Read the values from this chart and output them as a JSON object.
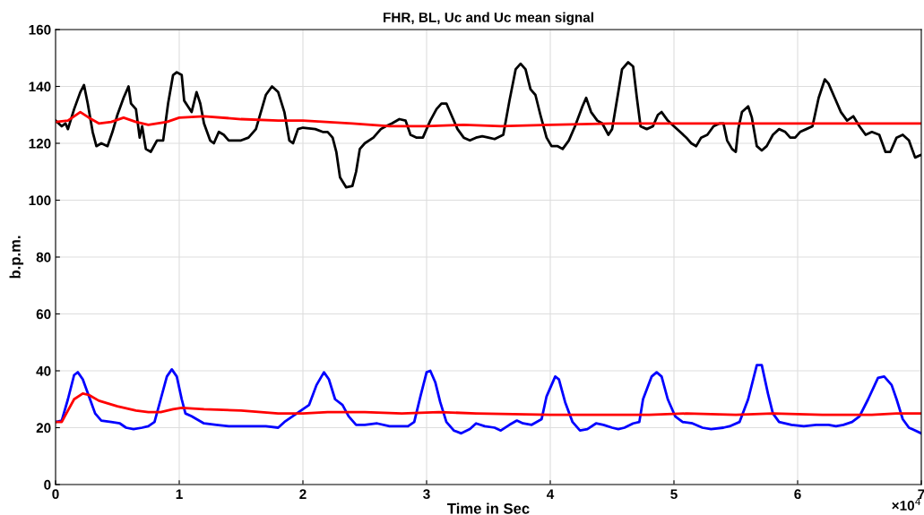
{
  "chart_data": {
    "type": "line",
    "title": "FHR, BL, Uc and Uc mean signal",
    "xlabel": "Time in Sec",
    "ylabel": "b.p.m.",
    "annotations": [
      "×10$^{4}$"
    ],
    "xlim": [
      0,
      7
    ],
    "ylim": [
      0,
      160
    ],
    "xticks": [
      0,
      1,
      2,
      3,
      4,
      5,
      6,
      7
    ],
    "yticks": [
      0,
      20,
      40,
      60,
      80,
      100,
      120,
      140,
      160
    ],
    "grid": true,
    "marker": "none",
    "line_style": "solid",
    "series": [
      {
        "color": "#000000",
        "x": [
          0,
          0.05,
          0.08,
          0.1,
          0.15,
          0.2,
          0.23,
          0.26,
          0.3,
          0.33,
          0.37,
          0.42,
          0.46,
          0.5,
          0.55,
          0.59,
          0.61,
          0.65,
          0.68,
          0.7,
          0.73,
          0.77,
          0.82,
          0.87,
          0.91,
          0.95,
          0.98,
          1.02,
          1.04,
          1.07,
          1.1,
          1.14,
          1.17,
          1.2,
          1.25,
          1.28,
          1.32,
          1.36,
          1.4,
          1.44,
          1.5,
          1.56,
          1.62,
          1.7,
          1.75,
          1.8,
          1.85,
          1.89,
          1.92,
          1.96,
          2.0,
          2.1,
          2.16,
          2.2,
          2.24,
          2.27,
          2.3,
          2.35,
          2.4,
          2.43,
          2.46,
          2.5,
          2.57,
          2.63,
          2.67,
          2.72,
          2.78,
          2.83,
          2.87,
          2.92,
          2.97,
          3.03,
          3.08,
          3.12,
          3.16,
          3.2,
          3.25,
          3.3,
          3.35,
          3.4,
          3.45,
          3.5,
          3.55,
          3.62,
          3.67,
          3.72,
          3.76,
          3.8,
          3.84,
          3.88,
          3.92,
          3.97,
          4.01,
          4.06,
          4.1,
          4.15,
          4.2,
          4.26,
          4.29,
          4.33,
          4.38,
          4.42,
          4.47,
          4.5,
          4.55,
          4.58,
          4.63,
          4.67,
          4.7,
          4.73,
          4.78,
          4.83,
          4.87,
          4.9,
          4.95,
          5.0,
          5.05,
          5.1,
          5.14,
          5.18,
          5.22,
          5.27,
          5.32,
          5.37,
          5.4,
          5.43,
          5.47,
          5.5,
          5.52,
          5.55,
          5.6,
          5.63,
          5.67,
          5.71,
          5.75,
          5.8,
          5.85,
          5.9,
          5.94,
          5.98,
          6.02,
          6.07,
          6.12,
          6.17,
          6.22,
          6.25,
          6.3,
          6.35,
          6.4,
          6.45,
          6.5,
          6.55,
          6.6,
          6.66,
          6.71,
          6.75,
          6.8,
          6.85,
          6.9,
          6.95,
          7.0
        ],
        "values": [
          128,
          126,
          127,
          125,
          132,
          138,
          140.5,
          134,
          124,
          119,
          120,
          119,
          124,
          130,
          136,
          140,
          134,
          132,
          122,
          126,
          118,
          117,
          121,
          121,
          134,
          144,
          145,
          144,
          135,
          133,
          131,
          138,
          134,
          127,
          121,
          120,
          124,
          123,
          121,
          121,
          121,
          122,
          125,
          137,
          140,
          138,
          131,
          121,
          120,
          125,
          125.5,
          125,
          124,
          124,
          122,
          117,
          108,
          104.5,
          105,
          110,
          118,
          120,
          122,
          125,
          126,
          127,
          128.5,
          128,
          123,
          122,
          122,
          128,
          132,
          134,
          134,
          130,
          125,
          122,
          121,
          122,
          122.5,
          122,
          121.5,
          123,
          135,
          146,
          148,
          146,
          139,
          137,
          130,
          122,
          119,
          119,
          118,
          121,
          126,
          133,
          136,
          131,
          128,
          127,
          123,
          125,
          138,
          146,
          148.5,
          147,
          136,
          126,
          125,
          126,
          130,
          131,
          128,
          126,
          124,
          122,
          120,
          119,
          122,
          123,
          126,
          127,
          127,
          121,
          118,
          117,
          125,
          131,
          133,
          129,
          119,
          117.5,
          119,
          123,
          125,
          124,
          122,
          122,
          124,
          125,
          126,
          136,
          142.5,
          141,
          136,
          131,
          128,
          129.5,
          126,
          123,
          124,
          123,
          117,
          117,
          122,
          123,
          121,
          115,
          116
        ]
      },
      {
        "color": "#ff0000",
        "x": [
          0,
          0.1,
          0.2,
          0.27,
          0.35,
          0.45,
          0.55,
          0.65,
          0.75,
          0.9,
          1.0,
          1.2,
          1.5,
          1.8,
          2.0,
          2.4,
          2.7,
          3.0,
          3.3,
          3.6,
          4.0,
          4.5,
          5.0,
          5.5,
          6.0,
          6.5,
          7.0
        ],
        "values": [
          127.5,
          128,
          131,
          129,
          127,
          127.5,
          129,
          127.5,
          126.5,
          127.5,
          129,
          129.5,
          128.5,
          128,
          128,
          127,
          126,
          126,
          126.5,
          126,
          126.5,
          127,
          127,
          127,
          127,
          127,
          127
        ]
      },
      {
        "color": "#0000ff",
        "x": [
          0,
          0.05,
          0.1,
          0.15,
          0.18,
          0.22,
          0.27,
          0.32,
          0.37,
          0.45,
          0.52,
          0.57,
          0.63,
          0.7,
          0.75,
          0.8,
          0.85,
          0.9,
          0.94,
          0.98,
          1.02,
          1.05,
          1.1,
          1.2,
          1.3,
          1.4,
          1.5,
          1.6,
          1.7,
          1.8,
          1.85,
          1.95,
          2.05,
          2.11,
          2.17,
          2.21,
          2.26,
          2.32,
          2.37,
          2.43,
          2.5,
          2.6,
          2.7,
          2.85,
          2.9,
          2.95,
          3.0,
          3.03,
          3.07,
          3.11,
          3.16,
          3.22,
          3.28,
          3.35,
          3.4,
          3.47,
          3.55,
          3.6,
          3.67,
          3.73,
          3.78,
          3.85,
          3.93,
          3.97,
          4.04,
          4.07,
          4.12,
          4.18,
          4.24,
          4.3,
          4.37,
          4.43,
          4.5,
          4.55,
          4.6,
          4.67,
          4.72,
          4.75,
          4.82,
          4.86,
          4.9,
          4.95,
          5.01,
          5.07,
          5.15,
          5.23,
          5.3,
          5.4,
          5.45,
          5.53,
          5.6,
          5.67,
          5.71,
          5.76,
          5.8,
          5.85,
          5.95,
          6.05,
          6.15,
          6.25,
          6.31,
          6.37,
          6.44,
          6.5,
          6.57,
          6.65,
          6.7,
          6.76,
          6.8,
          6.85,
          6.9,
          7.0
        ],
        "values": [
          22,
          22.5,
          30,
          38.5,
          39.5,
          37,
          31,
          25,
          22.5,
          22,
          21.5,
          20,
          19.5,
          20,
          20.5,
          22,
          30,
          38,
          40.5,
          38,
          30,
          25,
          24,
          21.5,
          21,
          20.5,
          20.5,
          20.5,
          20.5,
          20,
          22,
          25,
          28,
          35,
          39.5,
          37,
          30,
          28,
          24,
          21,
          21,
          21.5,
          20.5,
          20.5,
          22,
          31,
          39.5,
          40,
          36,
          29,
          22,
          19,
          18,
          19.5,
          21.5,
          20.5,
          20,
          19,
          21,
          22.5,
          21.5,
          21,
          23,
          31,
          38,
          37,
          29,
          22,
          19,
          19.5,
          21.5,
          21,
          20,
          19.5,
          20,
          21.5,
          22,
          30,
          38,
          39.5,
          38,
          30,
          24,
          22,
          21.5,
          20,
          19.5,
          20,
          20.5,
          22,
          30,
          42,
          42,
          32,
          25,
          22,
          21,
          20.5,
          21,
          21,
          20.5,
          21,
          22,
          24,
          30,
          37.5,
          38,
          35,
          30,
          23,
          20,
          18
        ]
      },
      {
        "color": "#ff0000",
        "x": [
          0,
          0.05,
          0.1,
          0.15,
          0.22,
          0.27,
          0.35,
          0.5,
          0.65,
          0.75,
          0.85,
          0.95,
          1.02,
          1.2,
          1.5,
          1.8,
          2.0,
          2.2,
          2.5,
          2.8,
          3.1,
          3.4,
          4.0,
          4.5,
          4.8,
          5.1,
          5.5,
          5.8,
          6.2,
          6.6,
          6.8,
          7.0
        ],
        "values": [
          22,
          22,
          26,
          30,
          32,
          31.5,
          29.5,
          27.5,
          26,
          25.5,
          25.5,
          26.5,
          27,
          26.5,
          26,
          25,
          25,
          25.5,
          25.5,
          25,
          25.5,
          25,
          24.5,
          24.5,
          24.5,
          25,
          24.5,
          25,
          24.5,
          24.5,
          25,
          25
        ]
      }
    ]
  }
}
